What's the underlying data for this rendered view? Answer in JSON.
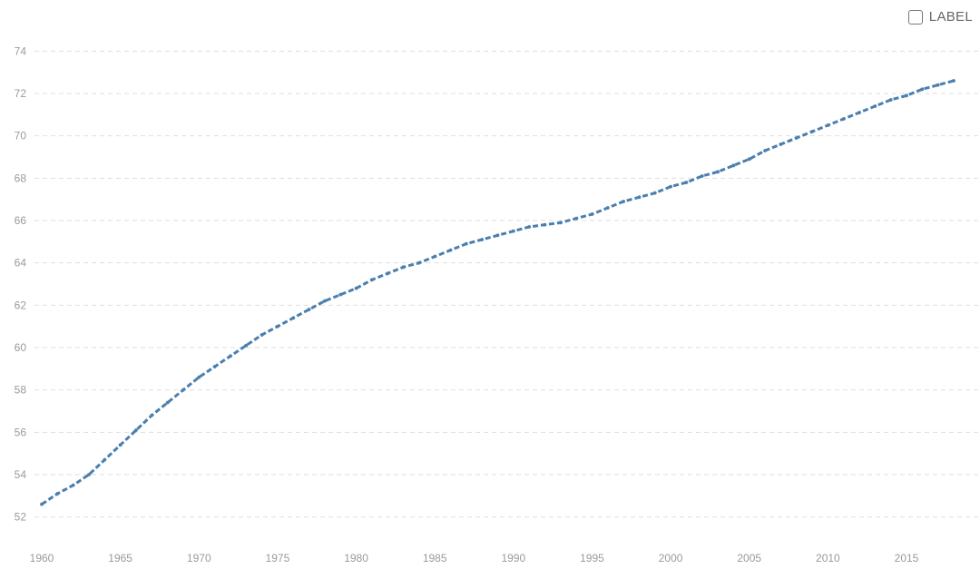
{
  "controls": {
    "label_toggle": {
      "text": "LABEL",
      "checked": false
    }
  },
  "colors": {
    "line": "#4a7fae",
    "grid": "#dedede",
    "tick_text": "#9a9a9a"
  },
  "chart_data": {
    "type": "line",
    "title": "",
    "xlabel": "",
    "ylabel": "",
    "xlim": [
      1960,
      2018
    ],
    "ylim": [
      51,
      75
    ],
    "grid": true,
    "x_ticks": [
      1960,
      1965,
      1970,
      1975,
      1980,
      1985,
      1990,
      1995,
      2000,
      2005,
      2010,
      2015
    ],
    "y_ticks": [
      52,
      54,
      56,
      58,
      60,
      62,
      64,
      66,
      68,
      70,
      72,
      74
    ],
    "series": [
      {
        "x": [
          1960,
          1961,
          1962,
          1963,
          1964,
          1965,
          1966,
          1967,
          1968,
          1969,
          1970,
          1971,
          1972,
          1973,
          1974,
          1975,
          1976,
          1977,
          1978,
          1979,
          1980,
          1981,
          1982,
          1983,
          1984,
          1985,
          1986,
          1987,
          1988,
          1989,
          1990,
          1991,
          1992,
          1993,
          1994,
          1995,
          1996,
          1997,
          1998,
          1999,
          2000,
          2001,
          2002,
          2003,
          2004,
          2005,
          2006,
          2007,
          2008,
          2009,
          2010,
          2011,
          2012,
          2013,
          2014,
          2015,
          2016,
          2017,
          2018
        ],
        "values": [
          52.6,
          53.1,
          53.5,
          54.0,
          54.7,
          55.4,
          56.1,
          56.8,
          57.4,
          58.0,
          58.6,
          59.1,
          59.6,
          60.1,
          60.6,
          61.0,
          61.4,
          61.8,
          62.2,
          62.5,
          62.8,
          63.2,
          63.5,
          63.8,
          64.0,
          64.3,
          64.6,
          64.9,
          65.1,
          65.3,
          65.5,
          65.7,
          65.8,
          65.9,
          66.1,
          66.3,
          66.6,
          66.9,
          67.1,
          67.3,
          67.6,
          67.8,
          68.1,
          68.3,
          68.6,
          68.9,
          69.3,
          69.6,
          69.9,
          70.2,
          70.5,
          70.8,
          71.1,
          71.4,
          71.7,
          71.9,
          72.2,
          72.4,
          72.6
        ]
      }
    ]
  }
}
